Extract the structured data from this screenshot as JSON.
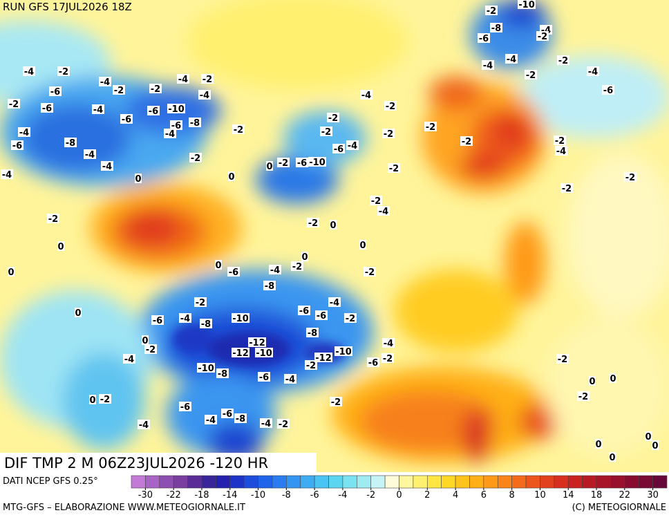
{
  "header": "RUN GFS 17JUL2026 18Z",
  "map_title": "DIF TMP 2 M 06Z23JUL2026 -120 HR",
  "source": "DATI NCEP GFS 0.25°",
  "credit_left": "MTG-GFS – ELABORAZIONE WWW.METEOGIORNALE.IT",
  "credit_right": "(C) METEOGIORNALE",
  "colorbar": {
    "labels": [
      -30,
      -22,
      -18,
      -14,
      -10,
      -8,
      -6,
      -4,
      -2,
      0,
      2,
      4,
      6,
      8,
      10,
      14,
      18,
      22,
      30
    ],
    "colors": [
      "#c27ad6",
      "#a864c4",
      "#8e4fb2",
      "#7a3ea0",
      "#5a2c98",
      "#3a249a",
      "#2420b0",
      "#1e34c8",
      "#1e4cdc",
      "#2064ec",
      "#2a7cf0",
      "#3494f2",
      "#3eacf2",
      "#4ac4f2",
      "#5cd6f0",
      "#7ae2f0",
      "#9eecf2",
      "#c6f4f6",
      "#fdfbd8",
      "#fff6a0",
      "#fff070",
      "#ffe640",
      "#ffd826",
      "#ffc41c",
      "#ffb018",
      "#ff9a18",
      "#fb8418",
      "#f46c1a",
      "#ec561c",
      "#e2421e",
      "#d8301e",
      "#ca2220",
      "#b81a24",
      "#a81428",
      "#98102c",
      "#880c30",
      "#780a34",
      "#680838"
    ]
  },
  "contour_labels": [
    -2,
    -10,
    -8,
    -4,
    -6,
    -2,
    -4,
    -4,
    -2,
    -4,
    -2,
    -6,
    -4,
    -2,
    -4,
    -2,
    -4,
    -2,
    -2,
    -4,
    -6,
    -2,
    -6,
    -4,
    -6,
    -6,
    -10,
    -8,
    -6,
    -4,
    -4,
    -8,
    -6,
    -4,
    -4,
    -2,
    -4,
    -2,
    -4,
    -2,
    -2,
    -2,
    -6,
    -4,
    -10,
    -6,
    0,
    -2,
    -2,
    -2,
    -2,
    -2,
    -2,
    -4,
    -2,
    -2,
    0,
    0,
    -2,
    0,
    0,
    -2,
    0,
    -2,
    -4,
    0,
    0,
    -2,
    -4,
    -6,
    0,
    -2,
    -8,
    -2,
    -6,
    -4,
    -8,
    -10,
    -6,
    -6,
    -4,
    -2,
    -8,
    -12,
    -12,
    -10,
    -12,
    -10,
    -2,
    -4,
    -6,
    -2,
    -6,
    -4,
    -8,
    -10,
    0,
    0,
    -2,
    -4,
    -2,
    0,
    0,
    -2,
    -2,
    0,
    -2,
    -6,
    -4,
    -4,
    -6,
    -8,
    -4,
    -2,
    0,
    0,
    0,
    0
  ]
}
